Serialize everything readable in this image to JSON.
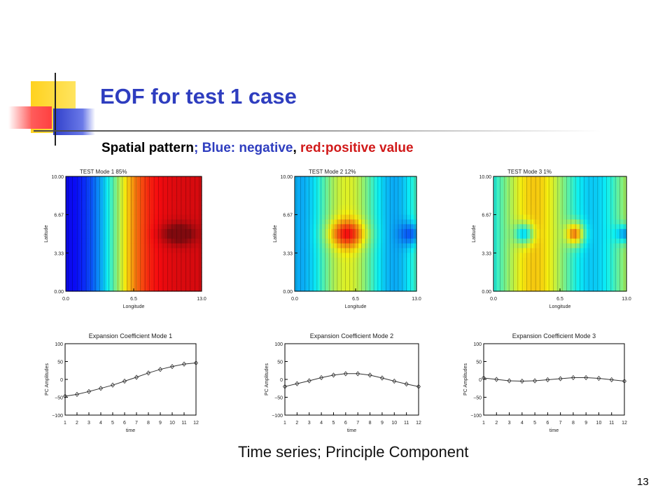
{
  "slide": {
    "title": "EOF for test 1 case",
    "subtitle": {
      "part1": "Spatial pattern",
      "sep1": ";",
      "part2": "Blue: negative",
      "sep2": ",",
      "part3": "red:positive value"
    },
    "caption": "Time series; Principle Component",
    "page_number": "13"
  },
  "colors": {
    "title": "#2e3dbf",
    "blue_text": "#2e3dbf",
    "red_text": "#d11a1a",
    "deco_yellow": "#ffd21f",
    "deco_blue": "#3344cc",
    "deco_red": "#ff5a5a"
  },
  "chart_data": [
    {
      "type": "heatmap",
      "title": "TEST   Mode 1   85%",
      "xlabel": "Longitude",
      "ylabel": "Latitude",
      "x_ticks": [
        "0.0",
        "6.5",
        "13.0"
      ],
      "y_ticks": [
        "0.00",
        "3.33",
        "6.67",
        "10.00"
      ],
      "xlim": [
        0,
        13
      ],
      "ylim": [
        0,
        10
      ],
      "pattern": "west-east gradient, negative (blue) in west, positive (red) in east, positive maximum near longitude 10.5, latitude 5"
    },
    {
      "type": "heatmap",
      "title": "TEST   Mode 2   12%",
      "xlabel": "Longitude",
      "ylabel": "Latitude",
      "x_ticks": [
        "0.0",
        "6.5",
        "13.0"
      ],
      "y_ticks": [
        "0.00",
        "3.33",
        "6.67",
        "10.00"
      ],
      "xlim": [
        0,
        13
      ],
      "ylim": [
        0,
        10
      ],
      "pattern": "positive (red) center near longitude 5.5, negative (blue) at both west and east edges"
    },
    {
      "type": "heatmap",
      "title": "TEST   Mode 3    1%",
      "xlabel": "Longitude",
      "ylabel": "Latitude",
      "x_ticks": [
        "0.0",
        "6.5",
        "13.0"
      ],
      "y_ticks": [
        "0.00",
        "3.33",
        "6.67",
        "10.00"
      ],
      "xlim": [
        0,
        13
      ],
      "ylim": [
        0,
        10
      ],
      "pattern": "negative (blue) centers near longitude 3 and 13, positive (red) center near longitude 8"
    },
    {
      "type": "line",
      "title": "Expansion Coefficient Mode 1",
      "xlabel": "time",
      "ylabel": "PC Amplitudes",
      "x": [
        1,
        2,
        3,
        4,
        5,
        6,
        7,
        8,
        9,
        10,
        11,
        12
      ],
      "y": [
        -47,
        -42,
        -34,
        -25,
        -16,
        -5,
        6,
        18,
        28,
        36,
        43,
        46
      ],
      "ylim": [
        -100,
        100
      ],
      "y_ticks": [
        "100",
        "50",
        "0",
        "-50",
        "-100"
      ]
    },
    {
      "type": "line",
      "title": "Expansion Coefficient Mode 2",
      "xlabel": "time",
      "ylabel": "PC Amplitudes",
      "x": [
        1,
        2,
        3,
        4,
        5,
        6,
        7,
        8,
        9,
        10,
        11,
        12
      ],
      "y": [
        -20,
        -12,
        -4,
        5,
        12,
        16,
        16,
        12,
        4,
        -5,
        -13,
        -20
      ],
      "ylim": [
        -100,
        100
      ],
      "y_ticks": [
        "100",
        "50",
        "0",
        "-50",
        "-100"
      ]
    },
    {
      "type": "line",
      "title": "Expansion Coefficient Mode 3",
      "xlabel": "time",
      "ylabel": "PC Amplitudes",
      "x": [
        1,
        2,
        3,
        4,
        5,
        6,
        7,
        8,
        9,
        10,
        11,
        12
      ],
      "y": [
        4,
        0,
        -4,
        -5,
        -4,
        -1,
        2,
        5,
        5,
        3,
        -1,
        -5
      ],
      "ylim": [
        -100,
        100
      ],
      "y_ticks": [
        "100",
        "50",
        "0",
        "-50",
        "-100"
      ]
    }
  ]
}
